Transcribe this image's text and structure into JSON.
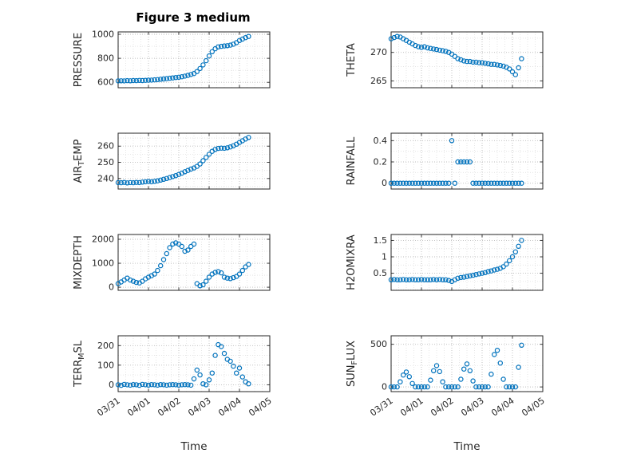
{
  "figure": {
    "title": "Figure 3 medium",
    "accent_color": "#0072BD",
    "axis_color": "#262626",
    "grid_color": "#bcbcbc",
    "minor_grid_color": "#e0e0e0"
  },
  "chart_data": {
    "type": "scatter",
    "marker": "hollow-circle",
    "xlabel": "Time",
    "xlim": [
      0,
      5
    ],
    "x_ticks": [
      0,
      1,
      2,
      3,
      4,
      5
    ],
    "x_tick_labels": [
      "03/31",
      "04/01",
      "04/02",
      "04/03",
      "04/04",
      "04/05"
    ],
    "minor_x_step": 0.25,
    "grid": "major-and-minor-dotted",
    "x": [
      0,
      0.1,
      0.2,
      0.3,
      0.4,
      0.5,
      0.6,
      0.7,
      0.8,
      0.9,
      1,
      1.1,
      1.2,
      1.3,
      1.4,
      1.5,
      1.6,
      1.7,
      1.8,
      1.9,
      2,
      2.1,
      2.2,
      2.3,
      2.4,
      2.5,
      2.6,
      2.7,
      2.8,
      2.9,
      3,
      3.1,
      3.2,
      3.3,
      3.4,
      3.5,
      3.6,
      3.7,
      3.8,
      3.9,
      4,
      4.1,
      4.2,
      4.3
    ],
    "subplots": [
      {
        "label": "PRESSURE",
        "yticks": [
          600,
          800,
          1000
        ],
        "ylim": [
          555,
          1020
        ],
        "values": [
          612,
          613,
          612,
          614,
          613,
          615,
          614,
          616,
          615,
          617,
          618,
          619,
          621,
          623,
          626,
          628,
          631,
          634,
          637,
          640,
          643,
          647,
          652,
          658,
          665,
          673,
          690,
          715,
          745,
          780,
          820,
          855,
          880,
          895,
          900,
          903,
          905,
          910,
          918,
          930,
          948,
          960,
          972,
          982
        ]
      },
      {
        "label": "AIR_TEMP",
        "yticks": [
          240,
          250,
          260
        ],
        "ylim": [
          233.5,
          268
        ],
        "values": [
          237.5,
          237.4,
          237.6,
          237.3,
          237.5,
          237.4,
          237.6,
          237.5,
          237.8,
          238,
          238.2,
          238,
          238.3,
          238.6,
          239,
          239.5,
          240,
          240.6,
          241.2,
          241.8,
          242.5,
          243.3,
          244.2,
          245,
          245.8,
          246.5,
          247.5,
          249,
          251,
          253,
          255,
          256.8,
          258,
          258.6,
          258.8,
          258.7,
          259,
          259.5,
          260.2,
          261.2,
          262.3,
          263.3,
          264.4,
          265.4
        ]
      },
      {
        "label": "MIXDEPTH",
        "yticks": [
          0,
          1000,
          2000
        ],
        "ylim": [
          -130,
          2200
        ],
        "values": [
          150,
          220,
          300,
          380,
          300,
          250,
          200,
          180,
          250,
          350,
          420,
          480,
          550,
          700,
          900,
          1150,
          1400,
          1650,
          1800,
          1850,
          1800,
          1700,
          1500,
          1550,
          1700,
          1800,
          150,
          60,
          100,
          250,
          420,
          550,
          620,
          650,
          600,
          420,
          380,
          360,
          400,
          450,
          550,
          700,
          850,
          950
        ]
      },
      {
        "label": "TERR_MSL",
        "yticks": [
          0,
          100,
          200
        ],
        "ylim": [
          -35,
          250
        ],
        "values": [
          0,
          -3,
          2,
          0,
          -2,
          1,
          0,
          -3,
          2,
          0,
          -2,
          1,
          0,
          -2,
          1,
          0,
          -2,
          0,
          1,
          0,
          -2,
          0,
          1,
          0,
          -2,
          30,
          75,
          50,
          5,
          0,
          25,
          60,
          150,
          205,
          195,
          160,
          130,
          120,
          95,
          60,
          85,
          40,
          15,
          5
        ]
      },
      {
        "label": "THETA",
        "yticks": [
          265,
          270
        ],
        "ylim": [
          263.8,
          273.6
        ],
        "values": [
          272.4,
          272.6,
          272.8,
          272.7,
          272.4,
          272.1,
          271.8,
          271.5,
          271.2,
          271,
          270.9,
          271,
          270.8,
          270.7,
          270.6,
          270.5,
          270.4,
          270.3,
          270.2,
          270,
          269.7,
          269.3,
          268.9,
          268.7,
          268.5,
          268.4,
          268.4,
          268.3,
          268.3,
          268.2,
          268.2,
          268.1,
          268,
          267.9,
          267.9,
          267.8,
          267.7,
          267.6,
          267.4,
          267.1,
          266.6,
          266.1,
          267.3,
          268.9
        ]
      },
      {
        "label": "RAINFALL",
        "yticks": [
          0,
          0.2,
          0.4
        ],
        "ylim": [
          -0.055,
          0.47
        ],
        "values": [
          0,
          0,
          0,
          0,
          0,
          0,
          0,
          0,
          0,
          0,
          0,
          0,
          0,
          0,
          0,
          0,
          0,
          0,
          0,
          0,
          0.4,
          0,
          0.2,
          0.2,
          0.2,
          0.2,
          0.2,
          0,
          0,
          0,
          0,
          0,
          0,
          0,
          0,
          0,
          0,
          0,
          0,
          0,
          0,
          0,
          0,
          0
        ]
      },
      {
        "label": "H2OMIXRA",
        "yticks": [
          0.5,
          1,
          1.5
        ],
        "ylim": [
          -0.02,
          1.68
        ],
        "values": [
          0.3,
          0.31,
          0.3,
          0.3,
          0.31,
          0.3,
          0.3,
          0.31,
          0.3,
          0.3,
          0.31,
          0.3,
          0.3,
          0.3,
          0.31,
          0.3,
          0.31,
          0.3,
          0.3,
          0.28,
          0.25,
          0.3,
          0.35,
          0.37,
          0.38,
          0.4,
          0.42,
          0.44,
          0.46,
          0.48,
          0.5,
          0.52,
          0.55,
          0.57,
          0.6,
          0.62,
          0.65,
          0.7,
          0.78,
          0.88,
          1,
          1.15,
          1.32,
          1.5
        ]
      },
      {
        "label": "SUN_FLUX",
        "yticks": [
          0,
          500
        ],
        "ylim": [
          -55,
          600
        ],
        "values": [
          0,
          0,
          0,
          60,
          140,
          175,
          120,
          40,
          0,
          0,
          0,
          0,
          0,
          80,
          190,
          250,
          180,
          60,
          0,
          0,
          0,
          0,
          0,
          90,
          210,
          270,
          190,
          70,
          0,
          0,
          0,
          0,
          0,
          150,
          380,
          430,
          280,
          90,
          0,
          0,
          0,
          0,
          230,
          490
        ]
      }
    ]
  }
}
